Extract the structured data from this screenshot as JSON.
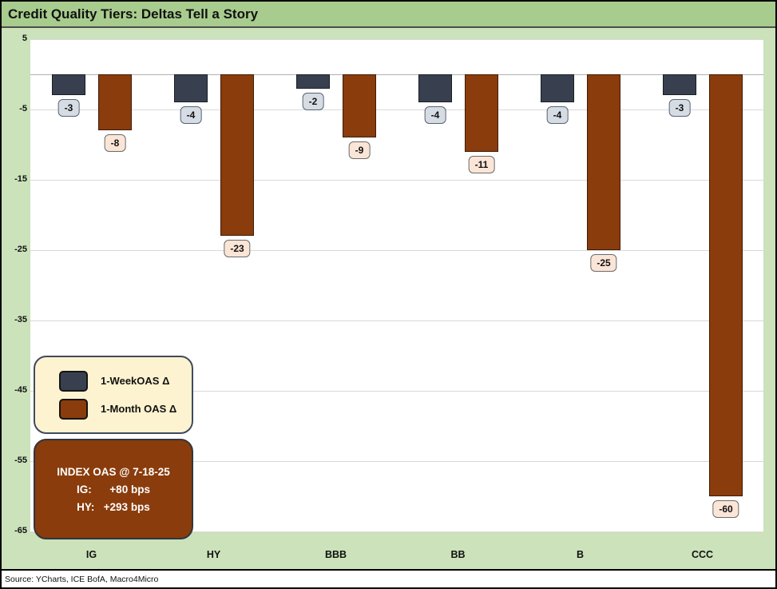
{
  "title": "Credit Quality Tiers: Deltas Tell a Story",
  "source": "Source: YCharts, ICE BofA, Macro4Micro",
  "colors": {
    "title_band": "#a8cc8e",
    "background": "#cbe2ba",
    "plot_bg": "#ffffff",
    "gridline": "#d9d9d9",
    "zero_line": "#b0b0b0",
    "week_bar": "#384050",
    "month_bar": "#8a3c0c",
    "week_label_bg": "#d6dce4",
    "month_label_bg": "#fbe5d6",
    "legend_bg": "#fdf3d0",
    "anno_bg": "#8a3c0c"
  },
  "chart_data": {
    "type": "bar",
    "categories": [
      "IG",
      "HY",
      "BBB",
      "BB",
      "B",
      "CCC"
    ],
    "series": [
      {
        "name": "1-WeekOAS Δ",
        "values": [
          -3,
          -4,
          -2,
          -4,
          -4,
          -3
        ],
        "color": "#384050",
        "label_style": "s0"
      },
      {
        "name": "1-Month OAS Δ",
        "values": [
          -8,
          -23,
          -9,
          -11,
          -25,
          -60
        ],
        "color": "#8a3c0c",
        "label_style": "s1"
      }
    ],
    "title": "Credit Quality Tiers: Deltas Tell a Story",
    "xlabel": "",
    "ylabel": "",
    "ylim": [
      -65,
      5
    ],
    "yticks": [
      5,
      -5,
      -15,
      -25,
      -35,
      -45,
      -55,
      -65
    ],
    "grid": true,
    "legend_position": "lower-left",
    "data_labels": true
  },
  "legend": {
    "items": [
      {
        "label": "1-WeekOAS Δ",
        "color": "#384050"
      },
      {
        "label": "1-Month OAS Δ",
        "color": "#8a3c0c"
      }
    ]
  },
  "annotation_box": {
    "lines": [
      "INDEX OAS @ 7-18-25",
      "IG:      +80 bps",
      "HY:   +293 bps"
    ]
  }
}
